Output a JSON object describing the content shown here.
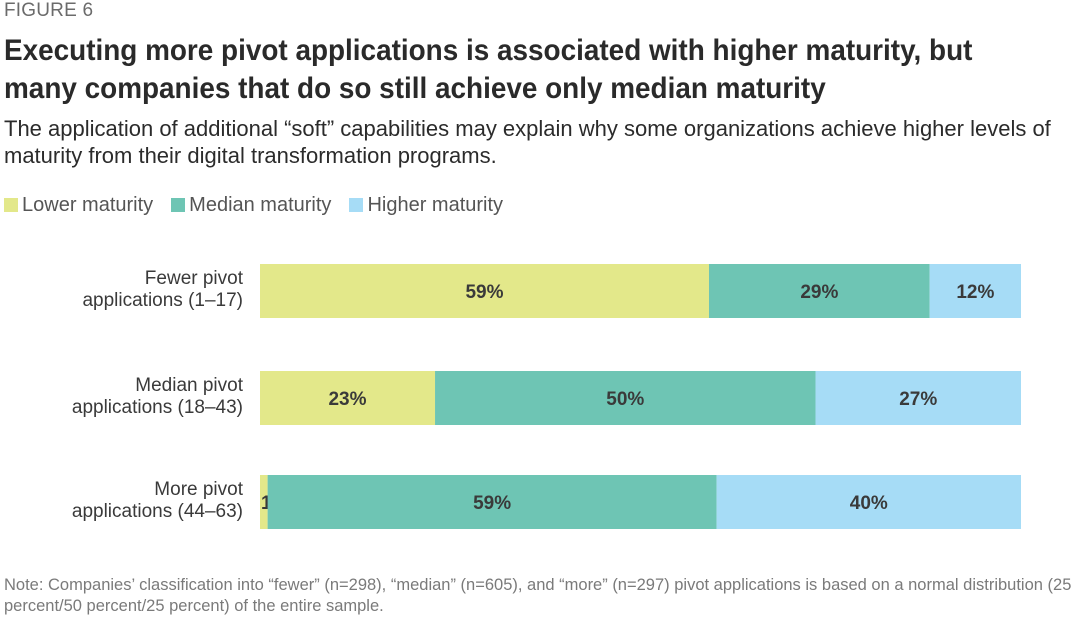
{
  "figure_label": "FIGURE 6",
  "title": "Executing more pivot applications is associated with higher maturity, but many companies that do so still achieve only median maturity",
  "subtitle": "The application of additional “soft” capabilities may explain why some organizations achieve higher levels of maturity from their digital transformation programs.",
  "note": "Note: Companies’ classification into “fewer” (n=298), “median” (n=605), and “more” (n=297) pivot applications is based on a normal distribution (25 percent/50 percent/25 percent) of the entire sample.",
  "colors": {
    "lower": "#e3e88a",
    "median": "#6ec5b4",
    "higher": "#a6dcf6"
  },
  "chart_data": {
    "type": "bar",
    "orientation": "horizontal",
    "stacked": true,
    "normalized": true,
    "xlim": [
      0,
      100
    ],
    "legend_placement": "top-left",
    "categories": [
      [
        "Fewer pivot",
        "applications (1–17)"
      ],
      [
        "Median pivot",
        "applications (18–43)"
      ],
      [
        "More pivot",
        "applications (44–63)"
      ]
    ],
    "series": [
      {
        "name": "Lower maturity",
        "key": "lower",
        "values": [
          59,
          23,
          1
        ],
        "labels": [
          "59%",
          "23%",
          "1%"
        ]
      },
      {
        "name": "Median maturity",
        "key": "median",
        "values": [
          29,
          50,
          59
        ],
        "labels": [
          "29%",
          "50%",
          "59%"
        ]
      },
      {
        "name": "Higher maturity",
        "key": "higher",
        "values": [
          12,
          27,
          40
        ],
        "labels": [
          "12%",
          "27%",
          "40%"
        ]
      }
    ]
  }
}
